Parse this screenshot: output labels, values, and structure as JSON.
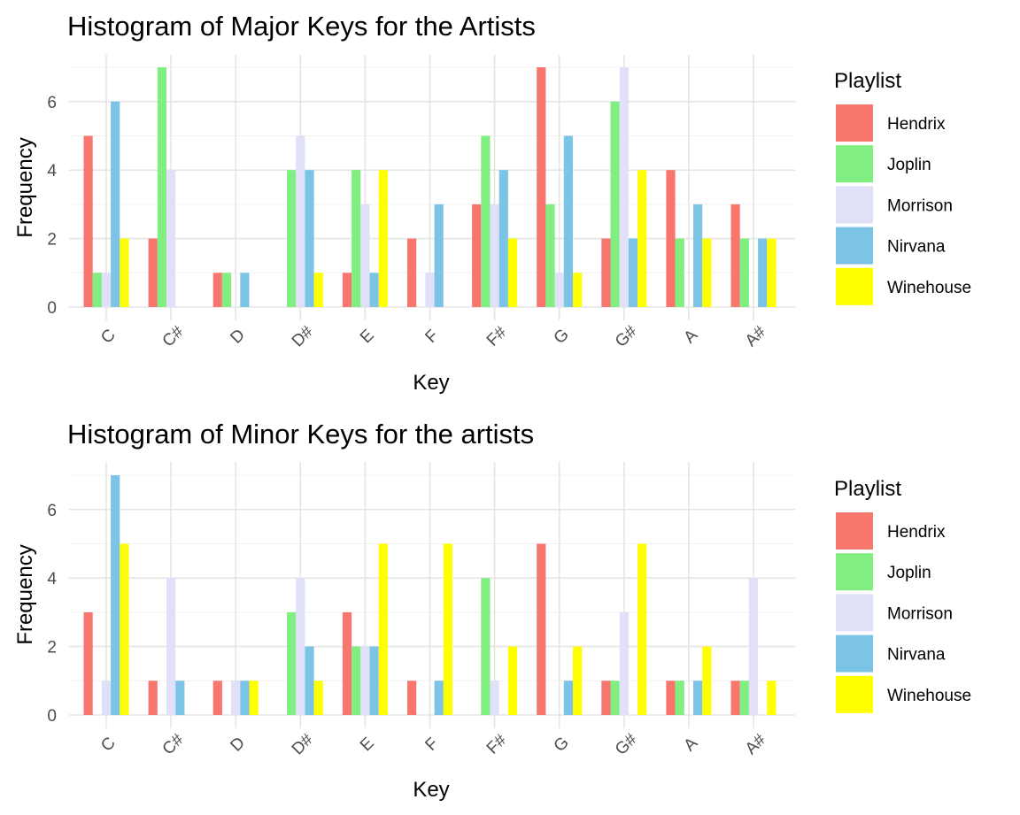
{
  "chart_data": [
    {
      "type": "bar",
      "title": "Histogram of Major Keys for the Artists",
      "xlabel": "Key",
      "ylabel": "Frequency",
      "ylim": [
        0,
        7.2
      ],
      "yticks": [
        "0",
        "2",
        "4",
        "6"
      ],
      "categories": [
        "C",
        "C#",
        "D",
        "D#",
        "E",
        "F",
        "F#",
        "G",
        "G#",
        "A",
        "A#"
      ],
      "legend_title": "Playlist",
      "legend_position": "right",
      "series": [
        {
          "name": "Hendrix",
          "color": "#F8766D",
          "values": [
            5,
            2,
            1,
            0,
            1,
            2,
            3,
            7,
            2,
            4,
            3
          ]
        },
        {
          "name": "Joplin",
          "color": "#80EE80",
          "values": [
            1,
            7,
            1,
            4,
            4,
            0,
            5,
            3,
            6,
            2,
            2
          ]
        },
        {
          "name": "Morrison",
          "color": "#E0E0F8",
          "values": [
            1,
            4,
            0,
            5,
            3,
            1,
            3,
            1,
            7,
            0,
            0
          ]
        },
        {
          "name": "Nirvana",
          "color": "#7CC4E6",
          "values": [
            6,
            0,
            1,
            4,
            1,
            3,
            4,
            5,
            2,
            3,
            2
          ]
        },
        {
          "name": "Winehouse",
          "color": "#FFFF00",
          "values": [
            2,
            0,
            0,
            1,
            4,
            0,
            2,
            1,
            4,
            2,
            2
          ]
        }
      ]
    },
    {
      "type": "bar",
      "title": "Histogram of Minor Keys for the artists",
      "xlabel": "Key",
      "ylabel": "Frequency",
      "ylim": [
        0,
        7.2
      ],
      "yticks": [
        "0",
        "2",
        "4",
        "6"
      ],
      "categories": [
        "C",
        "C#",
        "D",
        "D#",
        "E",
        "F",
        "F#",
        "G",
        "G#",
        "A",
        "A#"
      ],
      "legend_title": "Playlist",
      "legend_position": "right",
      "series": [
        {
          "name": "Hendrix",
          "color": "#F8766D",
          "values": [
            3,
            1,
            1,
            0,
            3,
            1,
            0,
            5,
            1,
            1,
            1
          ]
        },
        {
          "name": "Joplin",
          "color": "#80EE80",
          "values": [
            0,
            0,
            0,
            3,
            2,
            0,
            4,
            0,
            1,
            1,
            1
          ]
        },
        {
          "name": "Morrison",
          "color": "#E0E0F8",
          "values": [
            1,
            4,
            1,
            4,
            2,
            0,
            1,
            0,
            3,
            0,
            4
          ]
        },
        {
          "name": "Nirvana",
          "color": "#7CC4E6",
          "values": [
            7,
            1,
            1,
            2,
            2,
            1,
            0,
            1,
            0,
            1,
            0
          ]
        },
        {
          "name": "Winehouse",
          "color": "#FFFF00",
          "values": [
            5,
            0,
            1,
            1,
            5,
            5,
            2,
            2,
            5,
            2,
            1
          ]
        }
      ]
    }
  ]
}
